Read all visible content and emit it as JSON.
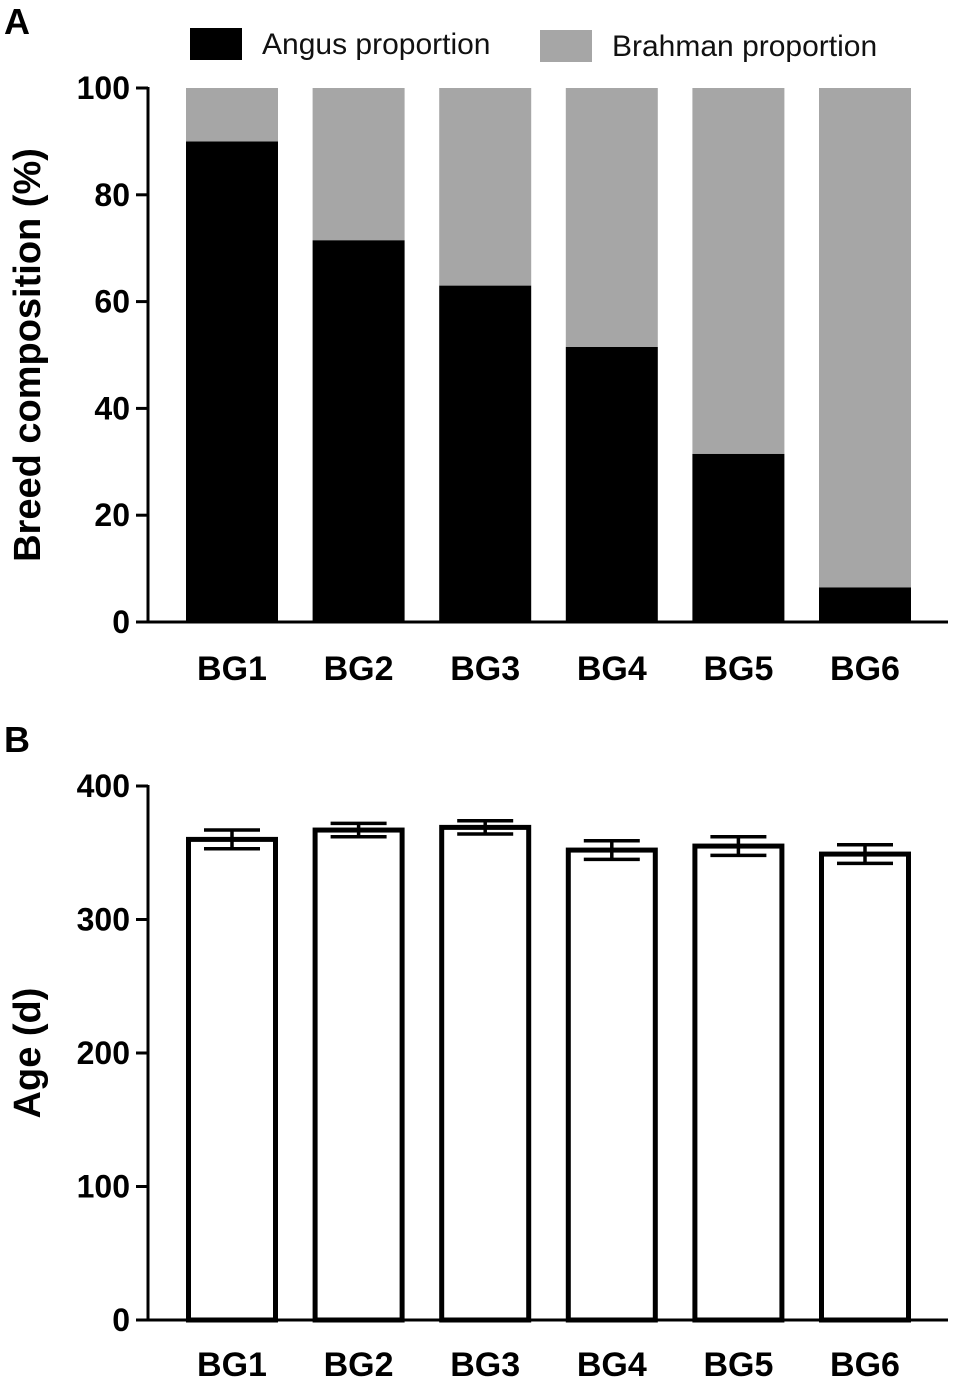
{
  "colors": {
    "angus": "#000000",
    "brahman": "#a6a6a6",
    "axis": "#000000",
    "bar_fill_b": "#ffffff"
  },
  "chart_data": [
    {
      "panel": "A",
      "type": "bar",
      "stacked": true,
      "categories": [
        "BG1",
        "BG2",
        "BG3",
        "BG4",
        "BG5",
        "BG6"
      ],
      "series": [
        {
          "name": "Angus proportion",
          "values": [
            90,
            71.5,
            63,
            51.5,
            31.5,
            6.5
          ]
        },
        {
          "name": "Brahman proportion",
          "values": [
            10,
            28.5,
            37,
            48.5,
            68.5,
            93.5
          ]
        }
      ],
      "ylabel": "Breed composition (%)",
      "ylim": [
        0,
        100
      ],
      "yticks": [
        0,
        20,
        40,
        60,
        80,
        100
      ],
      "legend": "top",
      "grid": false
    },
    {
      "panel": "B",
      "type": "bar",
      "categories": [
        "BG1",
        "BG2",
        "BG3",
        "BG4",
        "BG5",
        "BG6"
      ],
      "values": [
        360,
        367,
        369,
        352,
        355,
        349
      ],
      "errors": [
        7,
        5,
        5,
        7,
        7,
        7
      ],
      "ylabel": "Age (d)",
      "ylim": [
        0,
        400
      ],
      "yticks": [
        0,
        100,
        200,
        300,
        400
      ],
      "grid": false
    }
  ]
}
